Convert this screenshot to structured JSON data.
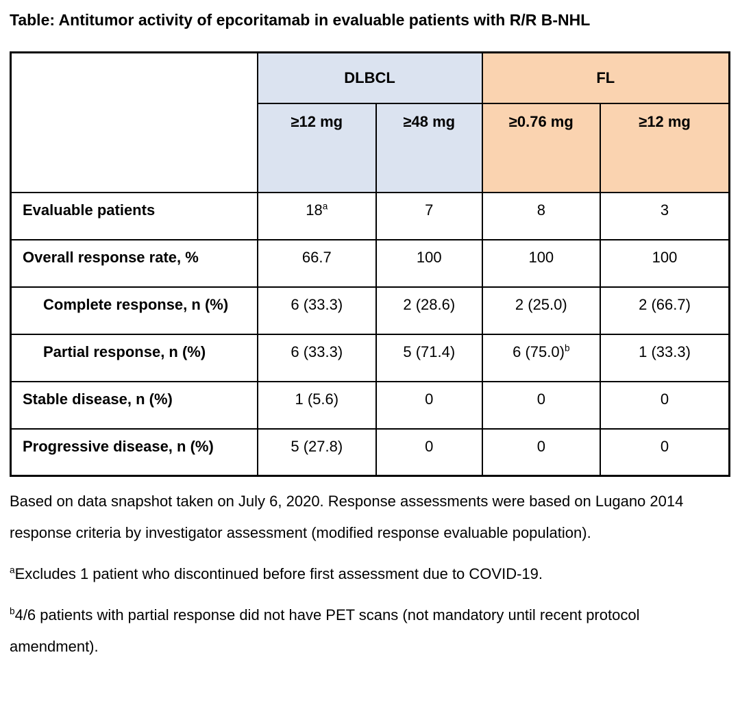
{
  "title": "Table: Antitumor activity of epcoritamab in evaluable patients with R/R B-NHL",
  "colors": {
    "dlbcl_header": "#DBE3F0",
    "fl_header": "#FAD3B0",
    "border": "#000000",
    "text": "#000000"
  },
  "table": {
    "groups": [
      {
        "label": "DLBCL",
        "span": 2
      },
      {
        "label": "FL",
        "span": 2
      }
    ],
    "subheaders": [
      "≥12 mg",
      "≥48 mg",
      "≥0.76 mg",
      "≥12 mg"
    ],
    "rows": [
      {
        "label": "Evaluable patients",
        "indent": false,
        "cells": [
          {
            "text": "18",
            "sup": "a"
          },
          {
            "text": "7"
          },
          {
            "text": "8"
          },
          {
            "text": "3"
          }
        ]
      },
      {
        "label": "Overall response rate, %",
        "indent": false,
        "cells": [
          {
            "text": "66.7"
          },
          {
            "text": "100"
          },
          {
            "text": "100"
          },
          {
            "text": "100"
          }
        ]
      },
      {
        "label": "Complete response, n (%)",
        "indent": true,
        "cells": [
          {
            "text": "6 (33.3)"
          },
          {
            "text": "2 (28.6)"
          },
          {
            "text": "2 (25.0)"
          },
          {
            "text": "2 (66.7)"
          }
        ]
      },
      {
        "label": "Partial response, n (%)",
        "indent": true,
        "cells": [
          {
            "text": "6 (33.3)"
          },
          {
            "text": "5 (71.4)"
          },
          {
            "text": "6 (75.0)",
            "sup": "b"
          },
          {
            "text": "1 (33.3)"
          }
        ]
      },
      {
        "label": "Stable disease, n (%)",
        "indent": false,
        "cells": [
          {
            "text": "1 (5.6)"
          },
          {
            "text": "0"
          },
          {
            "text": "0"
          },
          {
            "text": "0"
          }
        ]
      },
      {
        "label": "Progressive disease, n (%)",
        "indent": false,
        "cells": [
          {
            "text": "5 (27.8)"
          },
          {
            "text": "0"
          },
          {
            "text": "0"
          },
          {
            "text": "0"
          }
        ]
      }
    ]
  },
  "notes": {
    "snapshot": "Based on data snapshot taken on July 6, 2020. Response assessments were based on Lugano 2014 response criteria by investigator assessment (modified response evaluable population).",
    "footnote_a": {
      "marker": "a",
      "text": "Excludes 1 patient who discontinued before first assessment due to COVID-19."
    },
    "footnote_b": {
      "marker": "b",
      "text": "4/6 patients with partial response did not have PET scans (not mandatory until recent protocol amendment)."
    }
  }
}
